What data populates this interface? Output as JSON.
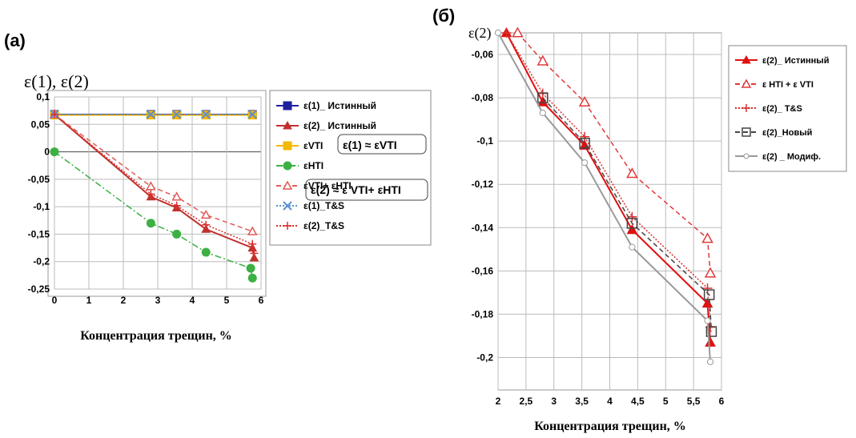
{
  "chart_data": [
    {
      "panel_label": "(a)",
      "type": "line",
      "y_axis_title": "ε(1), ε(2)",
      "xlabel": "Концентрация трещин, %",
      "xlim": [
        0,
        6
      ],
      "ylim": [
        -0.25,
        0.1
      ],
      "x_ticks": [
        "0",
        "1",
        "2",
        "3",
        "4",
        "5",
        "6"
      ],
      "y_ticks": [
        "0,1",
        "0,05",
        "0",
        "-0,05",
        "-0,1",
        "-0,15",
        "-0,2",
        "-0,25"
      ],
      "grid": true,
      "legend_position": "right",
      "series": [
        {
          "name": "ε(1)_ Истинный",
          "color": "#1f1f9e",
          "marker": "square",
          "dash": "solid",
          "x": [
            0,
            2.8,
            3.55,
            4.4,
            5.75
          ],
          "y": [
            0.068,
            0.068,
            0.068,
            0.068,
            0.068
          ]
        },
        {
          "name": "ε(2)_ Истинный",
          "color": "#c0302b",
          "marker": "triangle",
          "dash": "solid",
          "x": [
            0,
            2.8,
            3.55,
            4.4,
            5.75,
            5.8
          ],
          "y": [
            0.068,
            -0.082,
            -0.102,
            -0.141,
            -0.175,
            -0.193
          ]
        },
        {
          "name": "εVTI",
          "color": "#f5b800",
          "marker": "square",
          "dash": "solid",
          "x": [
            0,
            2.8,
            3.55,
            4.4,
            5.75
          ],
          "y": [
            0.067,
            0.067,
            0.067,
            0.067,
            0.067
          ]
        },
        {
          "name": "εHTI",
          "color": "#3cb043",
          "marker": "circle",
          "dash": "dashdot",
          "x": [
            0,
            2.8,
            3.55,
            4.4,
            5.7,
            5.75
          ],
          "y": [
            0,
            -0.13,
            -0.15,
            -0.183,
            -0.212,
            -0.23
          ]
        },
        {
          "name": "εVTI+ εHTI",
          "color": "#e05a57",
          "marker": "triangle-open",
          "dash": "dashed",
          "x": [
            0,
            2.8,
            3.55,
            4.4,
            5.75
          ],
          "y": [
            0.068,
            -0.063,
            -0.082,
            -0.115,
            -0.145
          ]
        },
        {
          "name": "ε(1)_T&S",
          "color": "#5a8ed0",
          "marker": "x",
          "dash": "dotted",
          "x": [
            0,
            2.8,
            3.55,
            4.4,
            5.75
          ],
          "y": [
            0.068,
            0.068,
            0.068,
            0.068,
            0.068
          ]
        },
        {
          "name": "ε(2)_T&S",
          "color": "#d93030",
          "marker": "plus",
          "dash": "dotted",
          "x": [
            0,
            2.8,
            3.55,
            4.4,
            5.75,
            5.8
          ],
          "y": [
            0.068,
            -0.077,
            -0.098,
            -0.133,
            -0.168,
            -0.185
          ]
        }
      ],
      "annotations": [
        "ε(1) ≈ εVTI",
        "ε(2) ≈ ε VTI+ εHTI"
      ]
    },
    {
      "panel_label": "(б)",
      "type": "line",
      "y_axis_title": "ε(2)",
      "xlabel": "Концентрация трещин, %",
      "xlim": [
        2,
        6
      ],
      "ylim": [
        -0.215,
        -0.05
      ],
      "x_ticks": [
        "2",
        "2,5",
        "3",
        "3,5",
        "4",
        "4,5",
        "5",
        "5,5",
        "6"
      ],
      "y_ticks": [
        "-0,06",
        "-0,08",
        "-0,1",
        "-0,12",
        "-0,14",
        "-0,16",
        "-0,18",
        "-0,2"
      ],
      "grid": true,
      "legend_position": "right",
      "series": [
        {
          "name": "ε(2)_ Истинный",
          "color": "#e01010",
          "marker": "triangle",
          "dash": "solid",
          "x": [
            2.15,
            2.8,
            3.55,
            4.4,
            5.75,
            5.8
          ],
          "y": [
            -0.05,
            -0.082,
            -0.102,
            -0.141,
            -0.175,
            -0.193
          ]
        },
        {
          "name": "ε HTI + ε VTI",
          "color": "#e03a3a",
          "marker": "triangle-open",
          "dash": "dashed",
          "x": [
            2.35,
            2.8,
            3.55,
            4.4,
            5.75,
            5.8
          ],
          "y": [
            -0.05,
            -0.063,
            -0.082,
            -0.115,
            -0.145,
            -0.161
          ]
        },
        {
          "name": "ε(2)_ T&S",
          "color": "#d93030",
          "marker": "plus",
          "dash": "dotted",
          "x": [
            2.15,
            2.8,
            3.55,
            4.4,
            5.75,
            5.8
          ],
          "y": [
            -0.05,
            -0.078,
            -0.098,
            -0.135,
            -0.168,
            -0.186
          ]
        },
        {
          "name": "ε(2)_Новый",
          "color": "#444444",
          "marker": "square-open",
          "dash": "dashed",
          "x": [
            2.8,
            3.55,
            4.4,
            5.78,
            5.82
          ],
          "y": [
            -0.08,
            -0.101,
            -0.138,
            -0.171,
            -0.188
          ]
        },
        {
          "name": "ε(2) _ Модиф.",
          "color": "#9a9a9a",
          "marker": "circle-open",
          "dash": "solid",
          "x": [
            2.0,
            2.8,
            3.55,
            4.4,
            5.75,
            5.8
          ],
          "y": [
            -0.05,
            -0.087,
            -0.11,
            -0.149,
            -0.183,
            -0.202
          ]
        }
      ]
    }
  ]
}
